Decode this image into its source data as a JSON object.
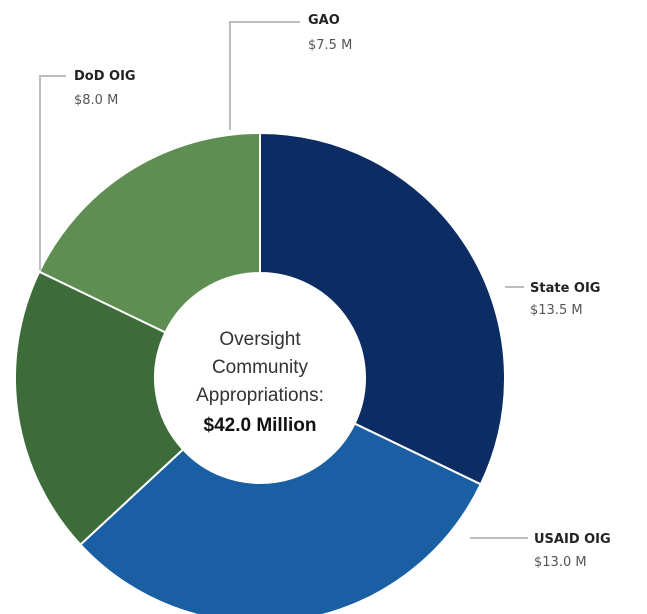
{
  "chart_data": {
    "type": "pie",
    "title": "",
    "center_label": {
      "lines": [
        "Oversight",
        "Community",
        "Appropriations:"
      ],
      "total": "$42.0 Million"
    },
    "units": "$ Millions",
    "slices": [
      {
        "name": "State OIG",
        "value": 13.5,
        "value_label": "$13.5 M",
        "color": "#0b2d63"
      },
      {
        "name": "USAID OIG",
        "value": 13.0,
        "value_label": "$13.0 M",
        "color": "#1a5ea3"
      },
      {
        "name": "DoD OIG",
        "value": 8.0,
        "value_label": "$8.0 M",
        "color": "#3d6b3a"
      },
      {
        "name": "GAO",
        "value": 7.5,
        "value_label": "$7.5 M",
        "color": "#5e8e52"
      }
    ],
    "total": 42.0
  }
}
